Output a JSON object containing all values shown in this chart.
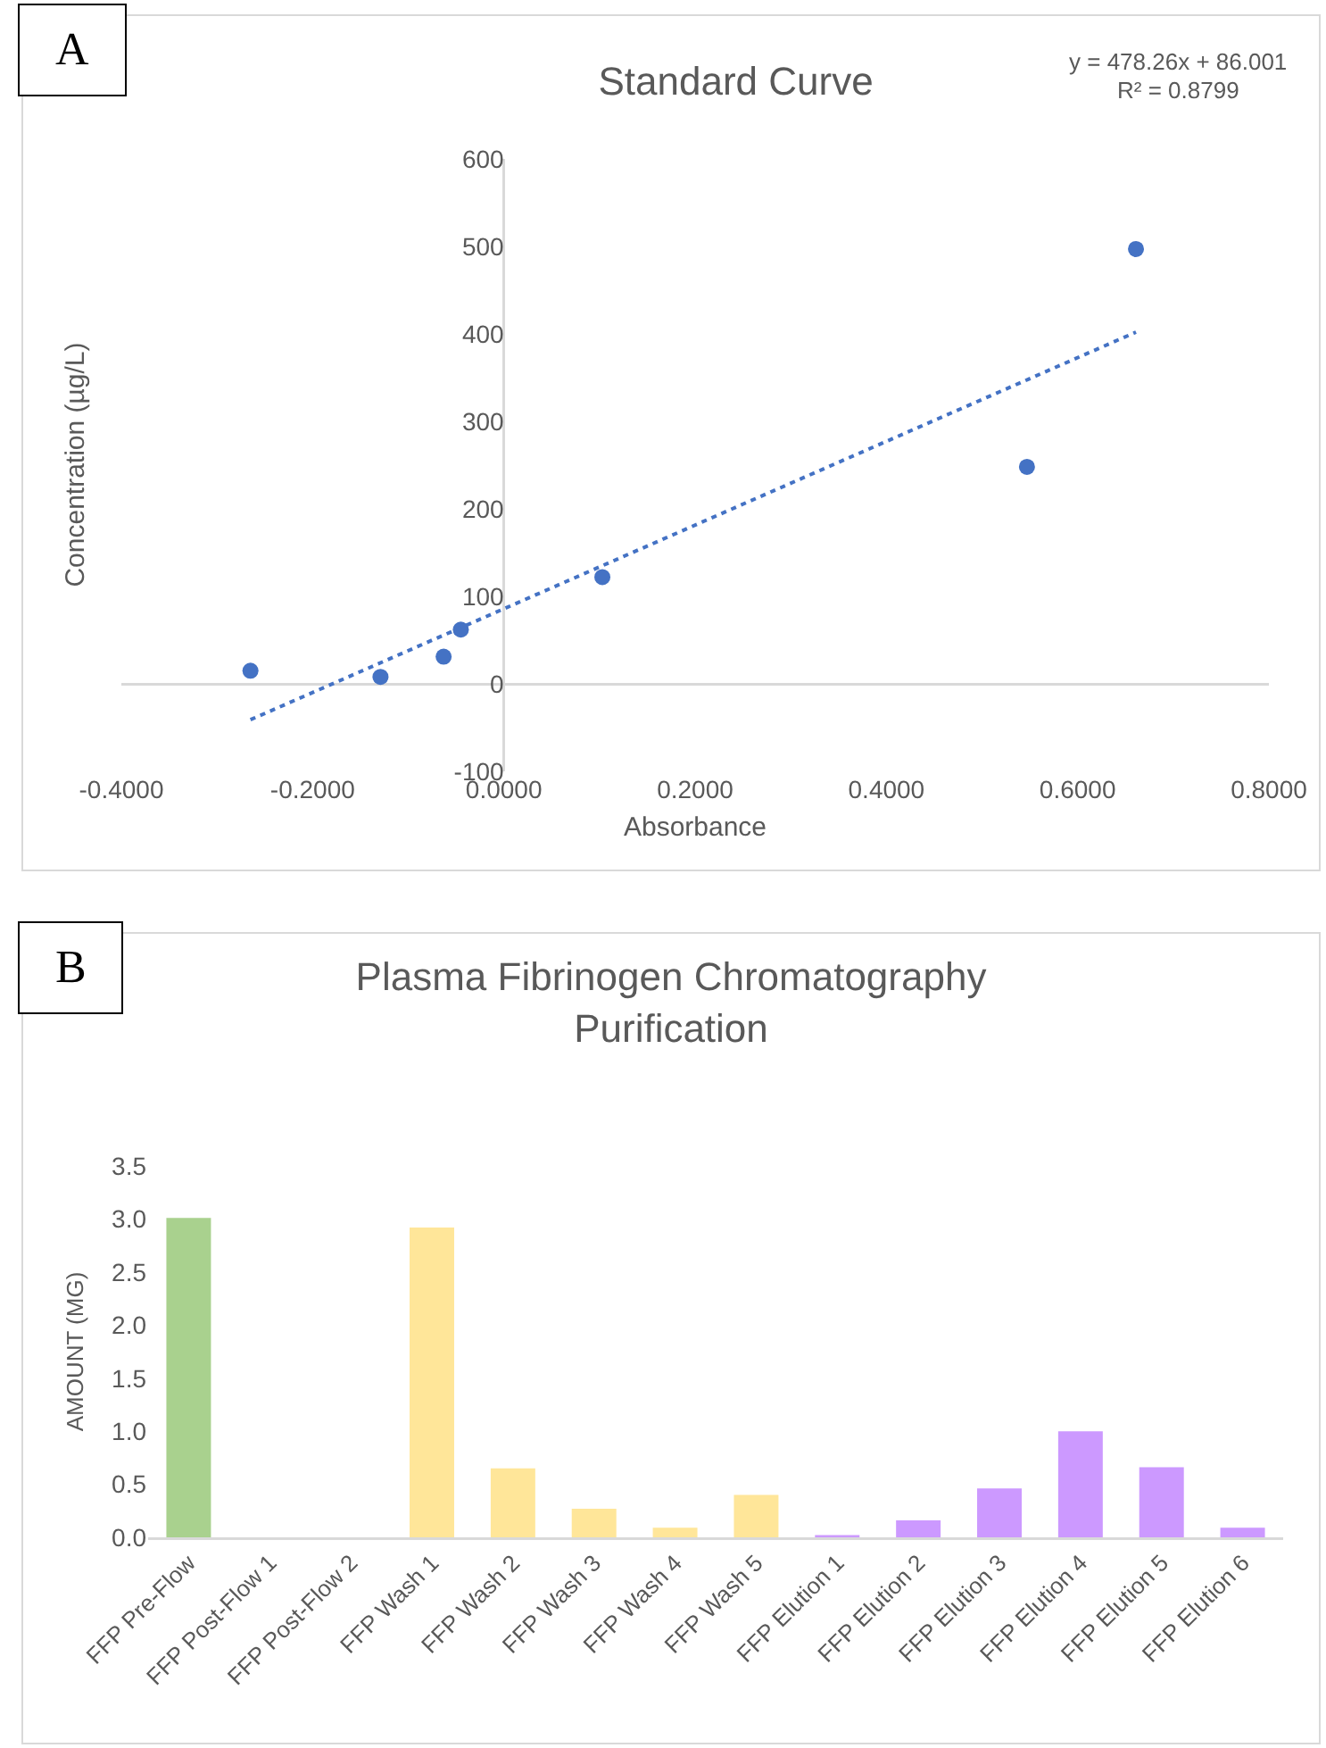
{
  "chart_data": [
    {
      "type": "scatter",
      "title": "Standard Curve",
      "xlabel": "Absorbance",
      "ylabel": "Concentration (µg/L)",
      "annotations": [
        "A",
        "y = 478.26x + 86.001",
        "R² = 0.8799"
      ],
      "xlim": [
        -0.4,
        0.8
      ],
      "xticks": [
        {
          "value": -0.4,
          "label": "-0.4000"
        },
        {
          "value": -0.2,
          "label": "-0.2000"
        },
        {
          "value": 0,
          "label": "0.0000"
        },
        {
          "value": 0.2,
          "label": "0.2000"
        },
        {
          "value": 0.4,
          "label": "0.4000"
        },
        {
          "value": 0.6,
          "label": "0.6000"
        },
        {
          "value": 0.8,
          "label": "0.8000"
        }
      ],
      "ylim": [
        -100,
        600
      ],
      "yticks": [
        -100,
        0,
        100,
        200,
        300,
        400,
        500,
        600
      ],
      "series": [
        {
          "marker": "circle",
          "color": "#4472c4",
          "x": [
            -0.265,
            -0.129,
            -0.063,
            -0.045,
            0.103,
            0.547,
            0.661
          ],
          "values": [
            15,
            8,
            31,
            62,
            122,
            248,
            497
          ]
        },
        {
          "type": "line",
          "line_style": "dotted",
          "color": "#4472c4",
          "x": [
            -0.265,
            0.661
          ],
          "values": [
            -41,
            402
          ]
        }
      ]
    },
    {
      "type": "bar",
      "title": "Plasma Fibrinogen Chromatography Purification",
      "ylabel": "AMOUNT (MG)",
      "annotations": [
        "B"
      ],
      "categories": [
        "FFP Pre-Flow",
        "FFP Post-Flow 1",
        "FFP Post-Flow 2",
        "FFP Wash 1",
        "FFP Wash 2",
        "FFP Wash 3",
        "FFP Wash 4",
        "FFP Wash 5",
        "FFP Elution 1",
        "FFP Elution 2",
        "FFP Elution 3",
        "FFP Elution 4",
        "FFP Elution 5",
        "FFP Elution 6"
      ],
      "values": [
        3.01,
        0,
        0,
        2.92,
        0.65,
        0.27,
        0.09,
        0.4,
        0.02,
        0.16,
        0.46,
        1.0,
        0.66,
        0.09
      ],
      "colors": [
        "#a9d18e",
        "#ffe699",
        "#ffe699",
        "#ffe699",
        "#ffe699",
        "#ffe699",
        "#ffe699",
        "#ffe699",
        "#cc99ff",
        "#cc99ff",
        "#cc99ff",
        "#cc99ff",
        "#cc99ff",
        "#cc99ff"
      ],
      "ylim": [
        0,
        3.5
      ],
      "yticks": [
        {
          "value": 0,
          "label": "0.0"
        },
        {
          "value": 0.5,
          "label": "0.5"
        },
        {
          "value": 1,
          "label": "1.0"
        },
        {
          "value": 1.5,
          "label": "1.5"
        },
        {
          "value": 2,
          "label": "2.0"
        },
        {
          "value": 2.5,
          "label": "2.5"
        },
        {
          "value": 3,
          "label": "3.0"
        },
        {
          "value": 3.5,
          "label": "3.5"
        }
      ]
    }
  ]
}
